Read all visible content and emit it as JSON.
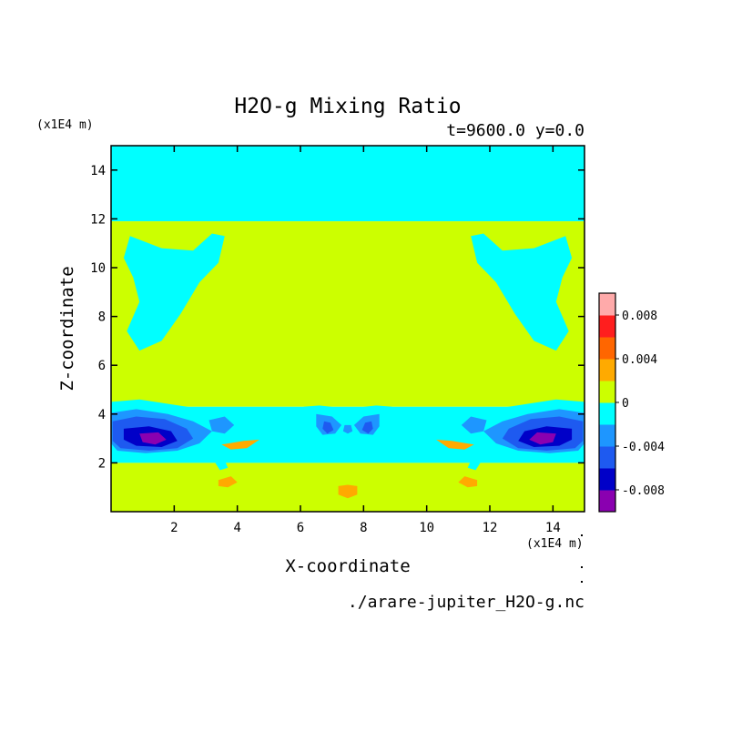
{
  "chart_data": {
    "type": "heatmap",
    "title": "H2O-g Mixing Ratio",
    "subtitle": "t=9600.0 y=0.0",
    "xlabel": "X-coordinate",
    "ylabel": "Z-coordinate",
    "x_unit": "(x1E4 m)",
    "y_unit": "(x1E4 m)",
    "source_file": "./arare-jupiter_H2O-g.nc",
    "xlim": [
      0,
      15
    ],
    "ylim": [
      0,
      15
    ],
    "x_ticks": [
      2,
      4,
      6,
      8,
      10,
      12,
      14
    ],
    "y_ticks": [
      2,
      4,
      6,
      8,
      10,
      12,
      14
    ],
    "colorbar": {
      "levels": [
        -0.01,
        -0.008,
        -0.006,
        -0.004,
        -0.002,
        0,
        0.002,
        0.004,
        0.006,
        0.008,
        0.01
      ],
      "colors": [
        "#8a00b0",
        "#0000c8",
        "#1e5af0",
        "#1e96ff",
        "#00ffff",
        "#ccff00",
        "#ffaa00",
        "#ff6600",
        "#ff1e1e",
        "#ffaaaa"
      ],
      "tick_labels": [
        "-0.008",
        "-0.004",
        "0",
        "0.004",
        "0.008"
      ],
      "tick_values": [
        -0.008,
        -0.004,
        0,
        0.004,
        0.008
      ]
    },
    "bands": [
      {
        "z_range": [
          11.9,
          15
        ],
        "level": -0.001
      },
      {
        "z_range": [
          4.3,
          11.9
        ],
        "level": 0.001
      },
      {
        "z_range": [
          2.0,
          4.3
        ],
        "level": -0.001
      },
      {
        "z_range": [
          0,
          2.0
        ],
        "level": 0.001
      }
    ],
    "regions": [
      {
        "level": -0.001,
        "points": [
          [
            0.6,
            11.3
          ],
          [
            1.6,
            10.8
          ],
          [
            2.6,
            10.7
          ],
          [
            3.2,
            11.4
          ],
          [
            3.6,
            11.3
          ],
          [
            3.4,
            10.2
          ],
          [
            2.8,
            9.4
          ],
          [
            2.2,
            8.1
          ],
          [
            1.6,
            7.0
          ],
          [
            0.9,
            6.6
          ],
          [
            0.5,
            7.4
          ],
          [
            0.9,
            8.6
          ],
          [
            0.7,
            9.6
          ],
          [
            0.4,
            10.4
          ]
        ]
      },
      {
        "level": -0.001,
        "points": [
          [
            14.4,
            11.3
          ],
          [
            13.4,
            10.8
          ],
          [
            12.4,
            10.7
          ],
          [
            11.8,
            11.4
          ],
          [
            11.4,
            11.3
          ],
          [
            11.6,
            10.2
          ],
          [
            12.2,
            9.4
          ],
          [
            12.8,
            8.1
          ],
          [
            13.4,
            7.0
          ],
          [
            14.1,
            6.6
          ],
          [
            14.5,
            7.4
          ],
          [
            14.1,
            8.6
          ],
          [
            14.3,
            9.6
          ],
          [
            14.6,
            10.4
          ]
        ]
      },
      {
        "level": -0.001,
        "points": [
          [
            0,
            4.5
          ],
          [
            0.9,
            4.6
          ],
          [
            2.4,
            4.3
          ],
          [
            3.6,
            4.1
          ],
          [
            4.6,
            3.7
          ],
          [
            5.6,
            3.3
          ],
          [
            6.4,
            3.1
          ],
          [
            5.2,
            3.0
          ],
          [
            4.0,
            2.8
          ],
          [
            2.8,
            2.6
          ],
          [
            1.4,
            2.3
          ],
          [
            0,
            2.5
          ]
        ]
      },
      {
        "level": -0.001,
        "points": [
          [
            15,
            4.5
          ],
          [
            14.1,
            4.6
          ],
          [
            12.6,
            4.3
          ],
          [
            11.4,
            4.1
          ],
          [
            10.4,
            3.7
          ],
          [
            9.4,
            3.3
          ],
          [
            8.6,
            3.1
          ],
          [
            9.8,
            3.0
          ],
          [
            11.0,
            2.8
          ],
          [
            12.2,
            2.6
          ],
          [
            13.6,
            2.3
          ],
          [
            15,
            2.5
          ]
        ]
      },
      {
        "level": -0.003,
        "points": [
          [
            0,
            4.05
          ],
          [
            0.8,
            4.2
          ],
          [
            1.8,
            4.0
          ],
          [
            2.6,
            3.7
          ],
          [
            3.2,
            3.3
          ],
          [
            2.8,
            2.8
          ],
          [
            2.1,
            2.5
          ],
          [
            1.1,
            2.4
          ],
          [
            0.2,
            2.5
          ],
          [
            0,
            2.8
          ]
        ]
      },
      {
        "level": -0.003,
        "points": [
          [
            15,
            4.05
          ],
          [
            14.2,
            4.2
          ],
          [
            13.2,
            4.0
          ],
          [
            12.4,
            3.7
          ],
          [
            11.8,
            3.3
          ],
          [
            12.2,
            2.8
          ],
          [
            12.9,
            2.5
          ],
          [
            13.9,
            2.4
          ],
          [
            14.8,
            2.5
          ],
          [
            15,
            2.8
          ]
        ]
      },
      {
        "level": -0.005,
        "points": [
          [
            0.05,
            3.7
          ],
          [
            0.8,
            3.9
          ],
          [
            1.7,
            3.8
          ],
          [
            2.4,
            3.4
          ],
          [
            2.6,
            3.0
          ],
          [
            2.1,
            2.6
          ],
          [
            1.2,
            2.5
          ],
          [
            0.3,
            2.6
          ],
          [
            0.05,
            2.9
          ]
        ]
      },
      {
        "level": -0.005,
        "points": [
          [
            14.95,
            3.7
          ],
          [
            14.2,
            3.9
          ],
          [
            13.3,
            3.8
          ],
          [
            12.6,
            3.4
          ],
          [
            12.4,
            3.0
          ],
          [
            12.9,
            2.6
          ],
          [
            13.8,
            2.5
          ],
          [
            14.7,
            2.6
          ],
          [
            14.95,
            2.9
          ]
        ]
      },
      {
        "level": -0.007,
        "points": [
          [
            0.4,
            3.4
          ],
          [
            1.2,
            3.5
          ],
          [
            1.9,
            3.3
          ],
          [
            2.1,
            2.9
          ],
          [
            1.6,
            2.65
          ],
          [
            0.8,
            2.7
          ],
          [
            0.4,
            2.95
          ]
        ]
      },
      {
        "level": -0.007,
        "points": [
          [
            14.6,
            3.4
          ],
          [
            13.8,
            3.5
          ],
          [
            13.1,
            3.3
          ],
          [
            12.9,
            2.9
          ],
          [
            13.4,
            2.65
          ],
          [
            14.2,
            2.7
          ],
          [
            14.6,
            2.95
          ]
        ]
      },
      {
        "level": -0.009,
        "points": [
          [
            0.9,
            3.2
          ],
          [
            1.5,
            3.25
          ],
          [
            1.75,
            2.95
          ],
          [
            1.4,
            2.75
          ],
          [
            1.0,
            2.85
          ]
        ]
      },
      {
        "level": -0.009,
        "points": [
          [
            14.1,
            3.2
          ],
          [
            13.5,
            3.25
          ],
          [
            13.25,
            2.95
          ],
          [
            13.6,
            2.75
          ],
          [
            14.0,
            2.85
          ]
        ]
      },
      {
        "level": -0.001,
        "points": [
          [
            6.1,
            4.3
          ],
          [
            6.6,
            4.35
          ],
          [
            7.3,
            4.25
          ],
          [
            7.5,
            4.0
          ],
          [
            7.7,
            4.25
          ],
          [
            8.4,
            4.35
          ],
          [
            8.9,
            4.3
          ],
          [
            8.6,
            3.7
          ],
          [
            8.2,
            3.1
          ],
          [
            7.8,
            3.25
          ],
          [
            7.5,
            3.1
          ],
          [
            7.2,
            3.25
          ],
          [
            6.8,
            3.1
          ],
          [
            6.4,
            3.7
          ]
        ]
      },
      {
        "level": -0.003,
        "points": [
          [
            6.5,
            4.0
          ],
          [
            7.0,
            3.9
          ],
          [
            7.3,
            3.55
          ],
          [
            7.1,
            3.2
          ],
          [
            6.7,
            3.15
          ],
          [
            6.5,
            3.5
          ]
        ]
      },
      {
        "level": -0.003,
        "points": [
          [
            8.5,
            4.0
          ],
          [
            8.0,
            3.9
          ],
          [
            7.7,
            3.55
          ],
          [
            7.9,
            3.2
          ],
          [
            8.3,
            3.15
          ],
          [
            8.5,
            3.5
          ]
        ]
      },
      {
        "level": -0.005,
        "points": [
          [
            6.75,
            3.7
          ],
          [
            6.95,
            3.65
          ],
          [
            7.05,
            3.35
          ],
          [
            6.85,
            3.2
          ],
          [
            6.7,
            3.4
          ]
        ]
      },
      {
        "level": -0.005,
        "points": [
          [
            8.25,
            3.7
          ],
          [
            8.05,
            3.65
          ],
          [
            7.95,
            3.35
          ],
          [
            8.15,
            3.2
          ],
          [
            8.3,
            3.4
          ]
        ]
      },
      {
        "level": -0.003,
        "points": [
          [
            7.4,
            3.55
          ],
          [
            7.6,
            3.55
          ],
          [
            7.65,
            3.3
          ],
          [
            7.5,
            3.2
          ],
          [
            7.35,
            3.3
          ]
        ]
      },
      {
        "level": -0.003,
        "points": [
          [
            3.1,
            3.75
          ],
          [
            3.6,
            3.9
          ],
          [
            3.9,
            3.55
          ],
          [
            3.6,
            3.2
          ],
          [
            3.2,
            3.3
          ]
        ]
      },
      {
        "level": -0.003,
        "points": [
          [
            11.9,
            3.75
          ],
          [
            11.4,
            3.9
          ],
          [
            11.1,
            3.55
          ],
          [
            11.4,
            3.2
          ],
          [
            11.8,
            3.3
          ]
        ]
      },
      {
        "level": 0.001,
        "points": [
          [
            5.5,
            11.4
          ],
          [
            5.9,
            11.8
          ],
          [
            6.3,
            11.7
          ],
          [
            6.1,
            11.2
          ],
          [
            5.7,
            10.9
          ],
          [
            5.5,
            11.0
          ]
        ]
      },
      {
        "level": 0.001,
        "points": [
          [
            9.5,
            11.4
          ],
          [
            9.1,
            11.8
          ],
          [
            8.7,
            11.7
          ],
          [
            8.9,
            11.2
          ],
          [
            9.3,
            10.9
          ],
          [
            9.5,
            11.0
          ]
        ]
      },
      {
        "level": 0.001,
        "points": [
          [
            6.7,
            9.4
          ],
          [
            7.0,
            9.1
          ],
          [
            7.2,
            8.7
          ],
          [
            7.1,
            8.6
          ],
          [
            6.8,
            9.0
          ]
        ]
      },
      {
        "level": 0.001,
        "points": [
          [
            8.3,
            9.4
          ],
          [
            8.0,
            9.1
          ],
          [
            7.8,
            8.7
          ],
          [
            7.9,
            8.6
          ],
          [
            8.2,
            9.0
          ]
        ]
      },
      {
        "level": 0.003,
        "points": [
          [
            3.5,
            2.75
          ],
          [
            4.2,
            2.9
          ],
          [
            4.7,
            2.95
          ],
          [
            4.3,
            2.6
          ],
          [
            3.8,
            2.55
          ]
        ]
      },
      {
        "level": 0.003,
        "points": [
          [
            11.5,
            2.75
          ],
          [
            10.8,
            2.9
          ],
          [
            10.3,
            2.95
          ],
          [
            10.7,
            2.6
          ],
          [
            11.2,
            2.55
          ]
        ]
      },
      {
        "level": 0.003,
        "points": [
          [
            3.4,
            1.3
          ],
          [
            3.8,
            1.45
          ],
          [
            4.0,
            1.2
          ],
          [
            3.7,
            1.0
          ],
          [
            3.4,
            1.05
          ]
        ]
      },
      {
        "level": 0.003,
        "points": [
          [
            11.6,
            1.3
          ],
          [
            11.2,
            1.45
          ],
          [
            11.0,
            1.2
          ],
          [
            11.3,
            1.0
          ],
          [
            11.6,
            1.05
          ]
        ]
      },
      {
        "level": 0.003,
        "points": [
          [
            7.2,
            1.05
          ],
          [
            7.5,
            1.1
          ],
          [
            7.8,
            1.05
          ],
          [
            7.8,
            0.7
          ],
          [
            7.5,
            0.55
          ],
          [
            7.2,
            0.7
          ]
        ]
      },
      {
        "level": -0.001,
        "points": [
          [
            3.3,
            2.0
          ],
          [
            3.6,
            2.1
          ],
          [
            3.7,
            1.8
          ],
          [
            3.45,
            1.7
          ]
        ]
      },
      {
        "level": -0.001,
        "points": [
          [
            11.7,
            2.0
          ],
          [
            11.4,
            2.1
          ],
          [
            11.3,
            1.8
          ],
          [
            11.55,
            1.7
          ]
        ]
      }
    ]
  }
}
